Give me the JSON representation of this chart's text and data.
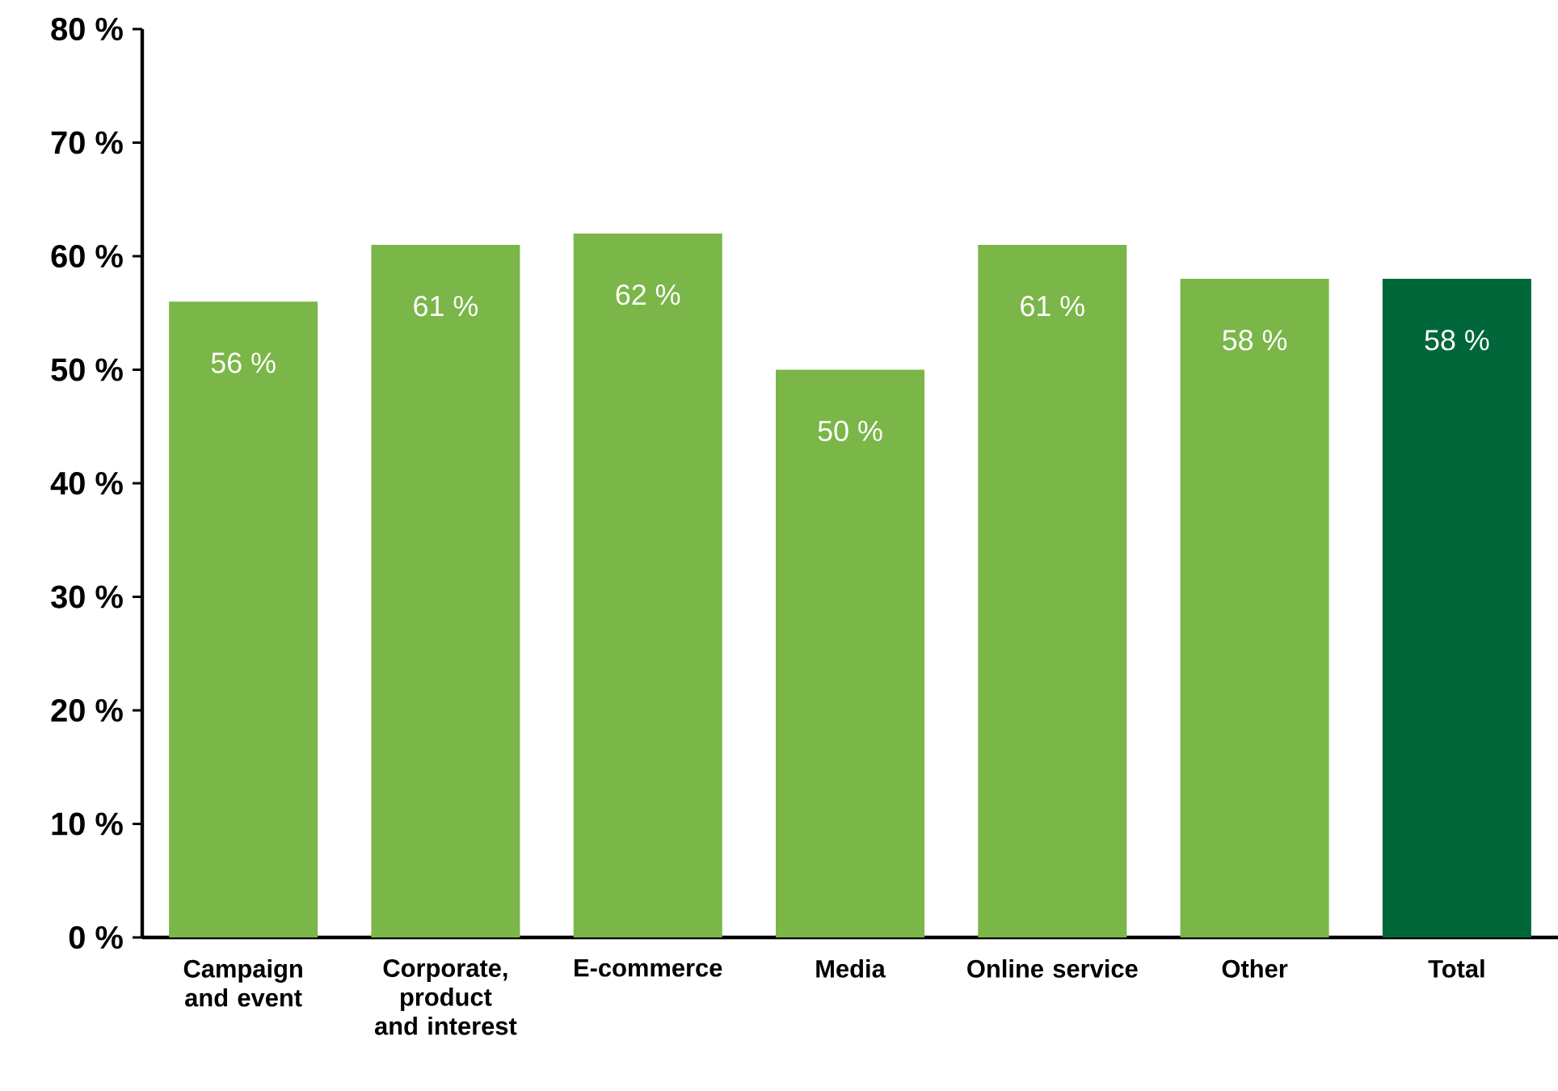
{
  "chart_data": {
    "type": "bar",
    "categories": [
      "Campaign and event",
      "Corporate, product and interest",
      "E-commerce",
      "Media",
      "Online service",
      "Other",
      "Total"
    ],
    "values": [
      56,
      61,
      62,
      50,
      61,
      58,
      58
    ],
    "colors": [
      "#7ab648",
      "#7ab648",
      "#7ab648",
      "#7ab648",
      "#7ab648",
      "#7ab648",
      "#00673a"
    ],
    "value_labels": [
      "56 %",
      "61 %",
      "62 %",
      "50 %",
      "61 %",
      "58 %",
      "58 %"
    ],
    "ylim": [
      0,
      80
    ],
    "yticks": [
      {
        "value": 0,
        "label": "0 %"
      },
      {
        "value": 10,
        "label": "10 %"
      },
      {
        "value": 20,
        "label": "20 %"
      },
      {
        "value": 30,
        "label": "30 %"
      },
      {
        "value": 40,
        "label": "40 %"
      },
      {
        "value": 50,
        "label": "50 %"
      },
      {
        "value": 60,
        "label": "60 %"
      },
      {
        "value": 70,
        "label": "70 %"
      },
      {
        "value": 80,
        "label": "80 %"
      }
    ],
    "grid": false
  }
}
